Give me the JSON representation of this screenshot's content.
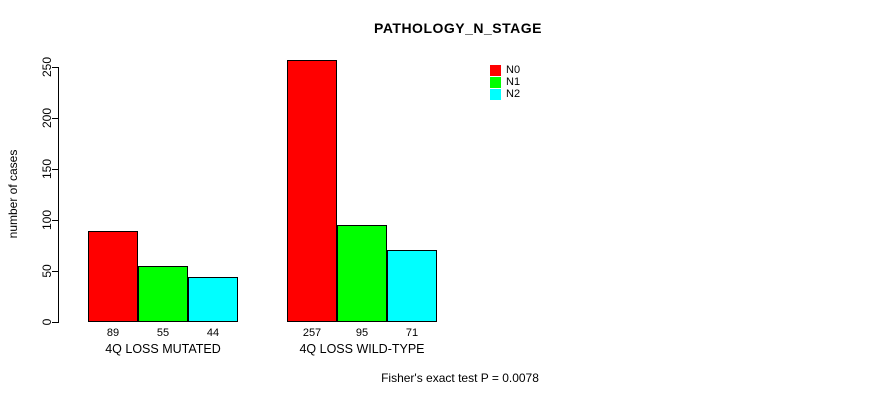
{
  "chart_data": {
    "type": "bar",
    "title": "PATHOLOGY_N_STAGE",
    "ylabel": "number of cases",
    "xlabel": "",
    "categories": [
      "4Q LOSS MUTATED",
      "4Q LOSS WILD-TYPE"
    ],
    "series": [
      {
        "name": "N0",
        "color": "#ff0000",
        "values": [
          89,
          257
        ]
      },
      {
        "name": "N1",
        "color": "#00ff00",
        "values": [
          55,
          95
        ]
      },
      {
        "name": "N2",
        "color": "#00ffff",
        "values": [
          44,
          71
        ]
      }
    ],
    "yticks": [
      0,
      50,
      100,
      150,
      200,
      250
    ],
    "ylim": [
      0,
      260
    ],
    "grid": false,
    "bar_value_labels": true,
    "legend_position": "top-right",
    "legend_entries": [
      "N0",
      "N1",
      "N2"
    ],
    "annotation": "Fisher's exact test P = 0.0078",
    "bar_border_color": "#000000"
  }
}
